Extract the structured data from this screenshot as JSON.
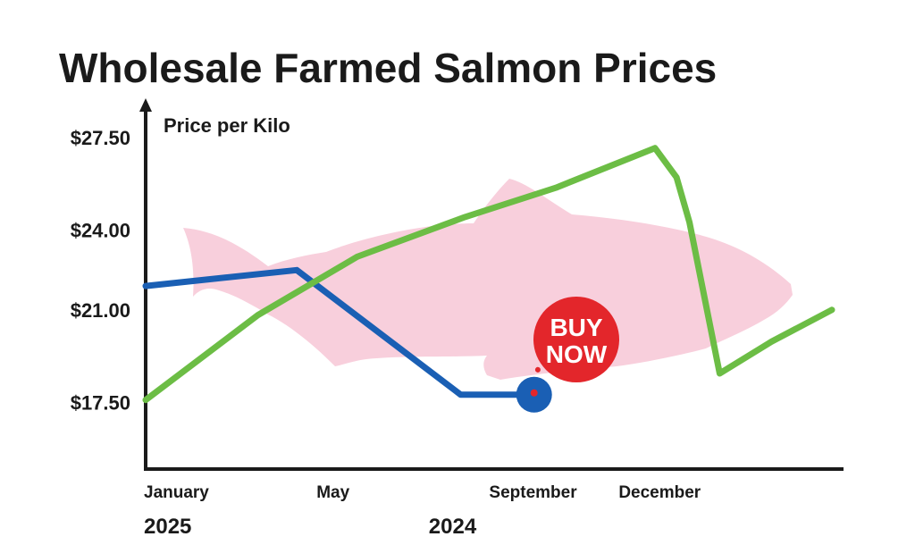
{
  "chart_data": {
    "type": "line",
    "title": "Wholesale Farmed Salmon Prices",
    "ylabel": "Price per Kilo",
    "y_ticks": [
      "$17.50",
      "$21.00",
      "$24.00",
      "$27.50"
    ],
    "y_tick_values": [
      17.5,
      21.0,
      24.0,
      27.5
    ],
    "x_ticks": [
      "January",
      "May",
      "September",
      "December"
    ],
    "x_tick_values": [
      1,
      5,
      9,
      12
    ],
    "year_labels": [
      {
        "text": "2025",
        "month": 1
      },
      {
        "text": "2024",
        "month": 7.6
      }
    ],
    "xlim": [
      1,
      16.9
    ],
    "ylim": [
      15.4,
      28.0
    ],
    "grid": false,
    "legend": "none",
    "series": [
      {
        "color": "#1a5fb4",
        "x": [
          1,
          4.5,
          8.3,
          10.0
        ],
        "y": [
          21.9,
          22.5,
          17.8,
          17.8
        ],
        "end_marker": true
      },
      {
        "color": "#6cbd45",
        "x": [
          1,
          3.6,
          5.9,
          8.4,
          10.5,
          12.8,
          13.3,
          13.6,
          14.3,
          15.5,
          16.9
        ],
        "y": [
          17.6,
          20.8,
          23.0,
          24.5,
          25.6,
          27.1,
          26.0,
          24.3,
          18.6,
          19.8,
          21.0
        ]
      }
    ],
    "callout": {
      "line1": "BUY",
      "line2": "NOW",
      "color": "#e3262b"
    }
  },
  "colors": {
    "fish": "#f8cfdc",
    "axis": "#1a1a1a"
  }
}
